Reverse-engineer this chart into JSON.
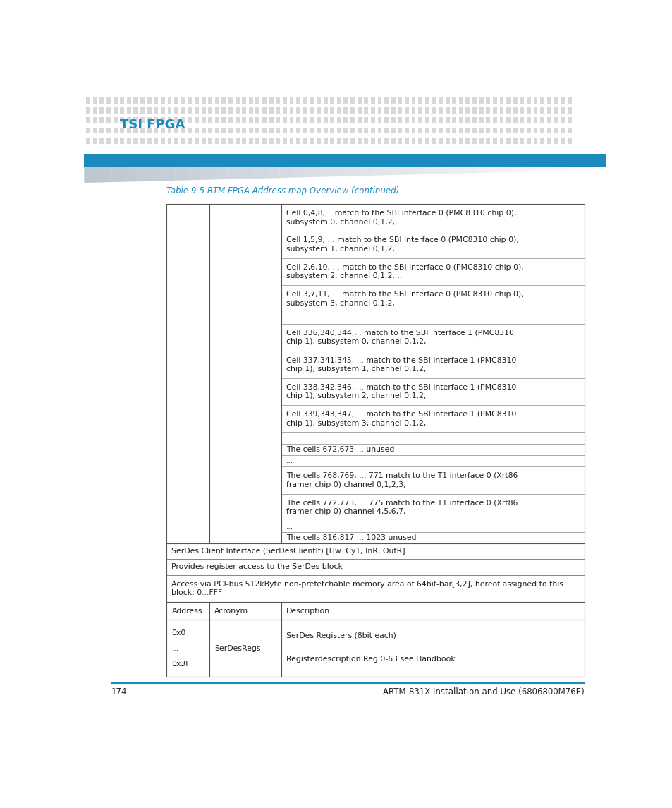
{
  "page_title": "TSI FPGA",
  "table_caption": "Table 9-5 RTM FPGA Address map Overview (continued)",
  "header_bg": "#1a8abf",
  "blue_color": "#1a8abf",
  "title_color": "#1a8abf",
  "text_color": "#231f20",
  "page_number": "174",
  "footer_text": "ARTM-831X Installation and Use (6806800M76E)",
  "description_rows": [
    "Cell 0,4,8,... match to the SBI interface 0 (PMC8310 chip 0),\nsubsystem 0, channel 0,1,2,...",
    "Cell 1,5,9, ... match to the SBI interface 0 (PMC8310 chip 0),\nsubsystem 1, channel 0,1,2,...",
    "Cell 2,6,10, ... match to the SBI interface 0 (PMC8310 chip 0),\nsubsystem 2, channel 0,1,2,...",
    "Cell 3,7,11, ... match to the SBI interface 0 (PMC8310 chip 0),\nsubsystem 3, channel 0,1,2,",
    "...",
    "Cell 336,340,344,... match to the SBI interface 1 (PMC8310\nchip 1), subsystem 0, channel 0,1,2,",
    "Cell 337,341,345, ... match to the SBI interface 1 (PMC8310\nchip 1), subsystem 1, channel 0,1,2,",
    "Cell 338,342,346, ... match to the SBI interface 1 (PMC8310\nchip 1), subsystem 2, channel 0,1,2,",
    "Cell 339,343,347, ... match to the SBI interface 1 (PMC8310\nchip 1), subsystem 3, channel 0,1,2,",
    "...",
    "The cells 672,673 ... unused",
    "...",
    "The cells 768,769, ... 771 match to the T1 interface 0 (Xrt86\nframer chip 0) channel 0,1,2,3,",
    "The cells 772,773, ... 775 match to the T1 interface 0 (Xrt86\nframer chip 0) channel 4,5,6,7,",
    "...",
    "The cells 816,817 ... 1023 unused"
  ],
  "section_header": "SerDes Client Interface (SerDesClientIf) [Hw: Cy1, InR, OutR]",
  "section_line1": "Provides register access to the SerDes block",
  "section_line2": "Access via PCI-bus 512kByte non-prefetchable memory area of 64bit-bar[3,2], hereof assigned to this\nblock: 0...FFF",
  "sub_header": [
    "Address",
    "Acronym",
    "Description"
  ],
  "data_row_col0": [
    "0x0",
    "...",
    "0x3F"
  ],
  "data_row_col1": "SerDesRegs",
  "data_row_col2_line1": "SerDes Registers (8bit each)",
  "data_row_col2_line2": "Registerdescription Reg 0-63 see Handbook"
}
